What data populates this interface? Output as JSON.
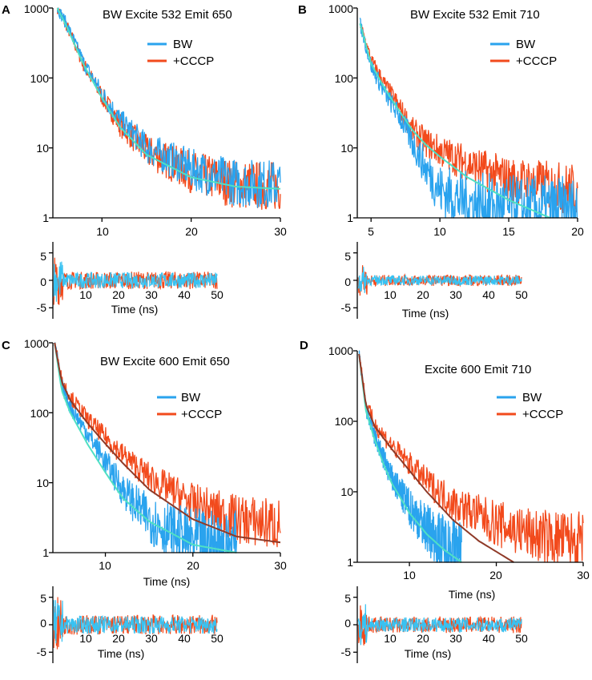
{
  "colors": {
    "bw": "#2aa3ee",
    "cccp": "#f24a1c",
    "fit_bw": "#4fe0c4",
    "fit_cccp": "#8f3a28",
    "residual_bw": "#38c2f2"
  },
  "chart_data": [
    {
      "panel": "A",
      "type": "line",
      "title": "BW Excite 532 Emit 650",
      "yscale": "log",
      "xlim": [
        4.5,
        30
      ],
      "ylim": [
        1,
        1000
      ],
      "x_ticks": [
        "10",
        "20",
        "30"
      ],
      "x_tick_values": [
        10,
        20,
        30
      ],
      "y_ticks": [
        "1",
        "10",
        "100",
        "1000"
      ],
      "y_tick_values": [
        1,
        10,
        100,
        1000
      ],
      "xlabel": "",
      "legend": [
        "BW",
        "+CCCP"
      ],
      "series": [
        {
          "name": "BW",
          "x": [
            5,
            6,
            8,
            10,
            12,
            15,
            20,
            25,
            30
          ],
          "values": [
            1000,
            600,
            160,
            60,
            25,
            10,
            5,
            3.2,
            3
          ]
        },
        {
          "name": "+CCCP",
          "x": [
            5,
            6,
            8,
            10,
            12,
            15,
            20,
            25,
            30
          ],
          "values": [
            1000,
            580,
            150,
            55,
            22,
            9,
            4.5,
            3,
            2.8
          ]
        },
        {
          "name": "fit",
          "x": [
            5,
            6,
            8,
            10,
            12,
            15,
            20,
            25,
            30
          ],
          "values": [
            1000,
            560,
            150,
            52,
            20,
            8,
            3.8,
            2.8,
            2.6
          ]
        }
      ],
      "residuals": {
        "xlim": [
          0,
          50
        ],
        "ylim": [
          -7,
          7
        ],
        "x_ticks": [
          "10",
          "20",
          "30",
          "40",
          "50"
        ],
        "x_tick_values": [
          10,
          20,
          30,
          40,
          50
        ],
        "y_ticks": [
          "5",
          "0",
          "-5"
        ],
        "y_tick_values": [
          5,
          0,
          -5
        ],
        "xlabel": "Time (ns)",
        "amplitude": 1.6
      }
    },
    {
      "panel": "B",
      "type": "line",
      "title": "BW Excite 532 Emit 710",
      "yscale": "log",
      "xlim": [
        4,
        20
      ],
      "ylim": [
        1,
        1000
      ],
      "x_ticks": [
        "5",
        "10",
        "15",
        "20"
      ],
      "x_tick_values": [
        5,
        10,
        15,
        20
      ],
      "y_ticks": [
        "1",
        "10",
        "100",
        "1000"
      ],
      "y_tick_values": [
        1,
        10,
        100,
        1000
      ],
      "xlabel": "",
      "legend": [
        "BW",
        "+CCCP"
      ],
      "series": [
        {
          "name": "BW",
          "x": [
            4.2,
            5,
            6,
            7,
            8,
            9,
            10,
            12,
            15,
            20
          ],
          "values": [
            600,
            150,
            60,
            30,
            12,
            5,
            2.5,
            1.6,
            1.3,
            1.2
          ]
        },
        {
          "name": "+CCCP",
          "x": [
            4.2,
            5,
            6,
            7,
            8,
            9,
            10,
            12,
            15,
            20
          ],
          "values": [
            600,
            180,
            80,
            40,
            18,
            12,
            9,
            6,
            3.5,
            2.5
          ]
        },
        {
          "name": "fit",
          "x": [
            4.2,
            5,
            6,
            7,
            8,
            9,
            10,
            12,
            15,
            18
          ],
          "values": [
            600,
            160,
            70,
            35,
            18,
            11,
            7.5,
            3.8,
            1.8,
            1
          ]
        }
      ],
      "residuals": {
        "xlim": [
          0,
          50
        ],
        "ylim": [
          -7,
          7
        ],
        "x_ticks": [
          "10",
          "20",
          "30",
          "40",
          "50"
        ],
        "x_tick_values": [
          10,
          20,
          30,
          40,
          50
        ],
        "y_ticks": [
          "5",
          "0",
          "-5"
        ],
        "y_tick_values": [
          5,
          0,
          -5
        ],
        "xlabel": "Time (ns)",
        "amplitude": 1.0
      }
    },
    {
      "panel": "C",
      "type": "line",
      "title": "BW Excite 600 Emit 650",
      "yscale": "log",
      "xlim": [
        4,
        30
      ],
      "ylim": [
        1,
        1000
      ],
      "x_ticks": [
        "10",
        "20",
        "30"
      ],
      "x_tick_values": [
        10,
        20,
        30
      ],
      "y_ticks": [
        "1",
        "10",
        "100",
        "1000"
      ],
      "y_tick_values": [
        1,
        10,
        100,
        1000
      ],
      "xlabel": "Time (ns)",
      "legend": [
        "BW",
        "+CCCP"
      ],
      "series": [
        {
          "name": "BW",
          "x": [
            4.2,
            5,
            6,
            8,
            10,
            12,
            14,
            16,
            18,
            20,
            25
          ],
          "values": [
            1000,
            250,
            120,
            50,
            20,
            8,
            4,
            2.5,
            1.8,
            1.4,
            1.2
          ]
        },
        {
          "name": "+CCCP",
          "x": [
            4.2,
            5,
            6,
            8,
            10,
            12,
            15,
            20,
            25,
            30
          ],
          "values": [
            1000,
            300,
            170,
            80,
            45,
            25,
            12,
            5,
            3,
            2.5
          ]
        },
        {
          "name": "fit BW",
          "x": [
            4.2,
            5,
            6,
            8,
            10,
            12,
            15,
            20,
            25
          ],
          "values": [
            1000,
            210,
            100,
            35,
            14,
            6,
            2.8,
            1.3,
            1
          ]
        },
        {
          "name": "fit +CCCP",
          "x": [
            4.2,
            5,
            6,
            8,
            10,
            12,
            15,
            20,
            25,
            30
          ],
          "values": [
            1000,
            280,
            150,
            70,
            36,
            19,
            8,
            3,
            1.7,
            1.4
          ]
        }
      ],
      "residuals": {
        "xlim": [
          0,
          50
        ],
        "ylim": [
          -7,
          7
        ],
        "x_ticks": [
          "10",
          "20",
          "30",
          "40",
          "50"
        ],
        "x_tick_values": [
          10,
          20,
          30,
          40,
          50
        ],
        "y_ticks": [
          "5",
          "0",
          "-5"
        ],
        "y_tick_values": [
          5,
          0,
          -5
        ],
        "xlabel": "Time (ns)",
        "amplitude": 1.8
      }
    },
    {
      "panel": "D",
      "type": "line",
      "title": "Excite 600 Emit 710",
      "yscale": "log",
      "xlim": [
        4,
        30
      ],
      "ylim": [
        1,
        1000
      ],
      "x_ticks": [
        "10",
        "20",
        "30"
      ],
      "x_tick_values": [
        10,
        20,
        30
      ],
      "y_ticks": [
        "1",
        "10",
        "100",
        "1000"
      ],
      "y_tick_values": [
        1,
        10,
        100,
        1000
      ],
      "xlabel": "Time (ns)",
      "legend": [
        "BW",
        "+CCCP"
      ],
      "series": [
        {
          "name": "BW",
          "x": [
            4.2,
            5,
            6,
            7,
            8,
            10,
            12,
            14,
            16
          ],
          "values": [
            900,
            150,
            60,
            30,
            15,
            6,
            3,
            1.8,
            1.3
          ]
        },
        {
          "name": "+CCCP",
          "x": [
            4.2,
            5,
            6,
            8,
            10,
            12,
            15,
            20,
            25,
            30
          ],
          "values": [
            900,
            180,
            90,
            45,
            25,
            14,
            7,
            3.5,
            2.3,
            2
          ]
        },
        {
          "name": "fit BW",
          "x": [
            4.2,
            5,
            6,
            7,
            8,
            10,
            12,
            14,
            16
          ],
          "values": [
            900,
            140,
            55,
            25,
            13,
            5,
            2.5,
            1.5,
            1
          ]
        },
        {
          "name": "fit +CCCP",
          "x": [
            4.2,
            5,
            6,
            8,
            10,
            12,
            15,
            18,
            22
          ],
          "values": [
            900,
            170,
            85,
            40,
            20,
            10,
            4,
            2,
            1
          ]
        }
      ],
      "residuals": {
        "xlim": [
          0,
          50
        ],
        "ylim": [
          -7,
          7
        ],
        "x_ticks": [
          "10",
          "20",
          "30",
          "40",
          "50"
        ],
        "x_tick_values": [
          10,
          20,
          30,
          40,
          50
        ],
        "y_ticks": [
          "5",
          "0",
          "-5"
        ],
        "y_tick_values": [
          5,
          0,
          -5
        ],
        "xlabel": "Time (ns)",
        "amplitude": 1.5
      }
    }
  ]
}
